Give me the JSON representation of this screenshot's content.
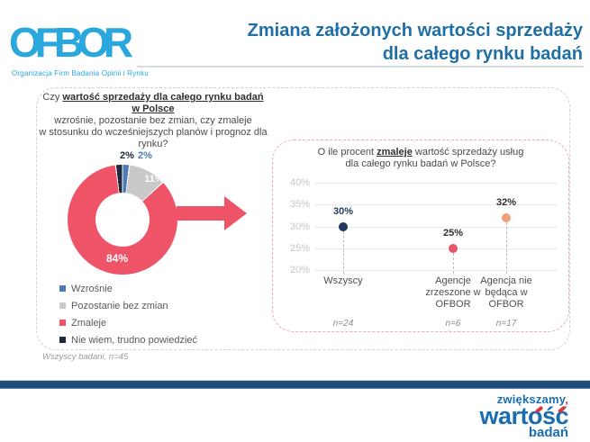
{
  "header": {
    "logo_text": "OFBOR",
    "logo_tagline": "Organizacja Firm Badania Opinii i Rynku",
    "title_line1": "Zmiana założonych wartości sprzedaży",
    "title_line2": "dla całego rynku badań",
    "title_color": "#1f6fa5",
    "logo_color": "#2aa7dd"
  },
  "left_panel": {
    "question_prefix": "Czy ",
    "question_underlined": "wartość sprzedaży dla całego rynku badań w Polsce",
    "question_line2": "wzrośnie, pozostanie bez zmian, czy zmaleje",
    "question_line3": "w stosunku do wcześniejszych planów i prognoz dla rynku?",
    "footnote": "Wszyscy badani, n=45"
  },
  "right_panel": {
    "question_prefix": "O ile procent ",
    "question_underlined": "zmaleje",
    "question_suffix": " wartość sprzedaży usług",
    "question_line2": "dla całego rynku badań w Polsce?"
  },
  "chart_data": [
    {
      "type": "pie",
      "donut": true,
      "categories": [
        "Wzrośnie",
        "Pozostanie bez zmian",
        "Zmaleje",
        "Nie wiem, trudno powiedzieć"
      ],
      "values": [
        2,
        11,
        84,
        2
      ],
      "labels": [
        "2%",
        "11%",
        "84%",
        "2%"
      ],
      "colors": [
        "#4f7bb5",
        "#c9c9c9",
        "#ee5368",
        "#20293a"
      ],
      "legend_position": "bottom-left",
      "note": "Wszyscy badani, n=45"
    },
    {
      "type": "scatter",
      "title": "O ile procent zmaleje wartość sprzedaży usług dla całego rynku badań w Polsce?",
      "categories": [
        "Wszyscy",
        "Agencje zrzeszone w OFBOR",
        "Agencja nie będąca w OFBOR"
      ],
      "values": [
        30,
        25,
        32
      ],
      "value_labels": [
        "30%",
        "25%",
        "32%"
      ],
      "value_label_colors": [
        "#1e3a5f",
        "#2f2f2f",
        "#2f2f2f"
      ],
      "n_labels": [
        "n=24",
        "n=6",
        "n=17"
      ],
      "point_colors": [
        "#1f3864",
        "#e4556a",
        "#efa077"
      ],
      "ylim": [
        20,
        40
      ],
      "yticks": [
        "40%",
        "35%",
        "30%",
        "25%",
        "20%"
      ],
      "ytick_values": [
        40,
        35,
        30,
        25,
        20
      ],
      "grid": true
    }
  ],
  "footer": {
    "word1": "zwiększamy",
    "word1_comma": ",",
    "word2": "wartość",
    "word3": "badań"
  }
}
